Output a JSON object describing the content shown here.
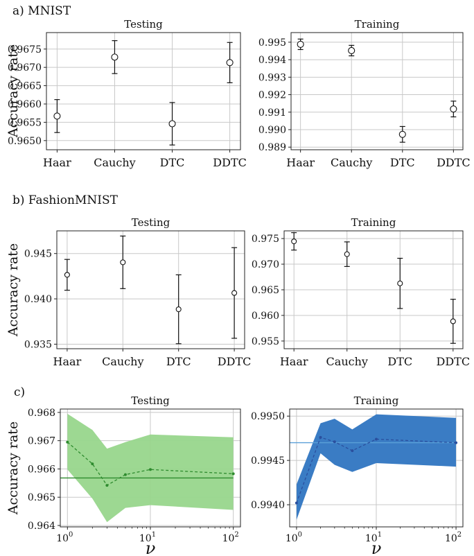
{
  "labels": {
    "a": "a) MNIST",
    "b": "b) FashionMNIST",
    "c": "c)"
  },
  "colors": {
    "grid": "#c8c8c8",
    "axis": "#222222",
    "test_line": "#2e8b2e",
    "test_band": "#98d68c",
    "train_line": "#2c69b0",
    "train_band": "#3a7cc4",
    "train_ref": "#5aa0d8"
  },
  "chart_data": [
    {
      "id": "a-testing",
      "type": "scatter",
      "title": "Testing",
      "ylabel": "Accuracy rate",
      "categories": [
        "Haar",
        "Cauchy",
        "DTC",
        "DDTC"
      ],
      "values": [
        0.96567,
        0.96728,
        0.96546,
        0.96713
      ],
      "errors": [
        0.00045,
        0.00045,
        0.00058,
        0.00055
      ],
      "ylim": [
        0.96475,
        0.96795
      ],
      "yticks": [
        0.965,
        0.9655,
        0.966,
        0.9665,
        0.967,
        0.9675
      ],
      "ytick_labels": [
        "0.9650",
        "0.9655",
        "0.9660",
        "0.9665",
        "0.9670",
        "0.9675"
      ],
      "grid": true
    },
    {
      "id": "a-training",
      "type": "scatter",
      "title": "Training",
      "ylabel": "",
      "categories": [
        "Haar",
        "Cauchy",
        "DTC",
        "DDTC"
      ],
      "values": [
        0.99488,
        0.99452,
        0.98973,
        0.99118
      ],
      "errors": [
        0.0003,
        0.0003,
        0.00045,
        0.00045
      ],
      "ylim": [
        0.98885,
        0.99555
      ],
      "yticks": [
        0.989,
        0.99,
        0.991,
        0.992,
        0.993,
        0.994,
        0.995
      ],
      "ytick_labels": [
        "0.989",
        "0.990",
        "0.991",
        "0.992",
        "0.993",
        "0.994",
        "0.995"
      ],
      "grid": true
    },
    {
      "id": "b-testing",
      "type": "scatter",
      "title": "Testing",
      "ylabel": "Accuracy rate",
      "categories": [
        "Haar",
        "Cauchy",
        "DTC",
        "DDTC"
      ],
      "values": [
        0.94265,
        0.94403,
        0.93885,
        0.94065
      ],
      "errors": [
        0.0017,
        0.0029,
        0.0038,
        0.005
      ],
      "ylim": [
        0.9345,
        0.9475
      ],
      "yticks": [
        0.935,
        0.94,
        0.945
      ],
      "ytick_labels": [
        "0.935",
        "0.940",
        "0.945"
      ],
      "grid": true
    },
    {
      "id": "b-training",
      "type": "scatter",
      "title": "Training",
      "ylabel": "",
      "categories": [
        "Haar",
        "Cauchy",
        "DTC",
        "DDTC"
      ],
      "values": [
        0.97445,
        0.97195,
        0.96625,
        0.95885
      ],
      "errors": [
        0.0017,
        0.0024,
        0.0049,
        0.0043
      ],
      "ylim": [
        0.9535,
        0.9765
      ],
      "yticks": [
        0.955,
        0.96,
        0.965,
        0.97,
        0.975
      ],
      "ytick_labels": [
        "0.955",
        "0.960",
        "0.965",
        "0.970",
        "0.975"
      ],
      "grid": true
    },
    {
      "id": "c-testing",
      "type": "line",
      "title": "Testing",
      "ylabel": "Accuracy rate",
      "xlabel": "ν",
      "xscale": "log",
      "x": [
        1,
        2,
        3,
        5,
        10,
        100
      ],
      "y": [
        0.96695,
        0.96618,
        0.96542,
        0.9658,
        0.96598,
        0.96583
      ],
      "band_upper": [
        0.96795,
        0.96738,
        0.96672,
        0.96695,
        0.96722,
        0.96712
      ],
      "band_lower": [
        0.96598,
        0.96495,
        0.96412,
        0.96462,
        0.96472,
        0.96455
      ],
      "reference": 0.96568,
      "xlim": [
        0.82,
        122
      ],
      "ylim": [
        0.96395,
        0.96812
      ],
      "xticks": [
        1,
        10,
        100
      ],
      "xtick_base": [
        "10",
        "10",
        "10"
      ],
      "xtick_exp": [
        "0",
        "1",
        "2"
      ],
      "yticks": [
        0.964,
        0.965,
        0.966,
        0.967,
        0.968
      ],
      "ytick_labels": [
        "0.964",
        "0.965",
        "0.966",
        "0.967",
        "0.968"
      ],
      "grid": true
    },
    {
      "id": "c-training",
      "type": "line",
      "title": "Training",
      "ylabel": "",
      "xlabel": "ν",
      "xscale": "log",
      "x": [
        1,
        2,
        3,
        5,
        10,
        100
      ],
      "y": [
        0.99402,
        0.99476,
        0.99471,
        0.99461,
        0.99474,
        0.9947
      ],
      "band_upper": [
        0.99423,
        0.99492,
        0.99497,
        0.99485,
        0.99502,
        0.99498
      ],
      "band_lower": [
        0.99383,
        0.99458,
        0.99445,
        0.99437,
        0.99447,
        0.99443
      ],
      "reference": 0.9947,
      "xlim": [
        0.82,
        122
      ],
      "ylim": [
        0.99375,
        0.99508
      ],
      "xticks": [
        1,
        10,
        100
      ],
      "xtick_base": [
        "10",
        "10",
        "10"
      ],
      "xtick_exp": [
        "0",
        "1",
        "2"
      ],
      "yticks": [
        0.994,
        0.9945,
        0.995
      ],
      "ytick_labels": [
        "0.9940",
        "0.9945",
        "0.9950"
      ],
      "grid": true
    }
  ]
}
